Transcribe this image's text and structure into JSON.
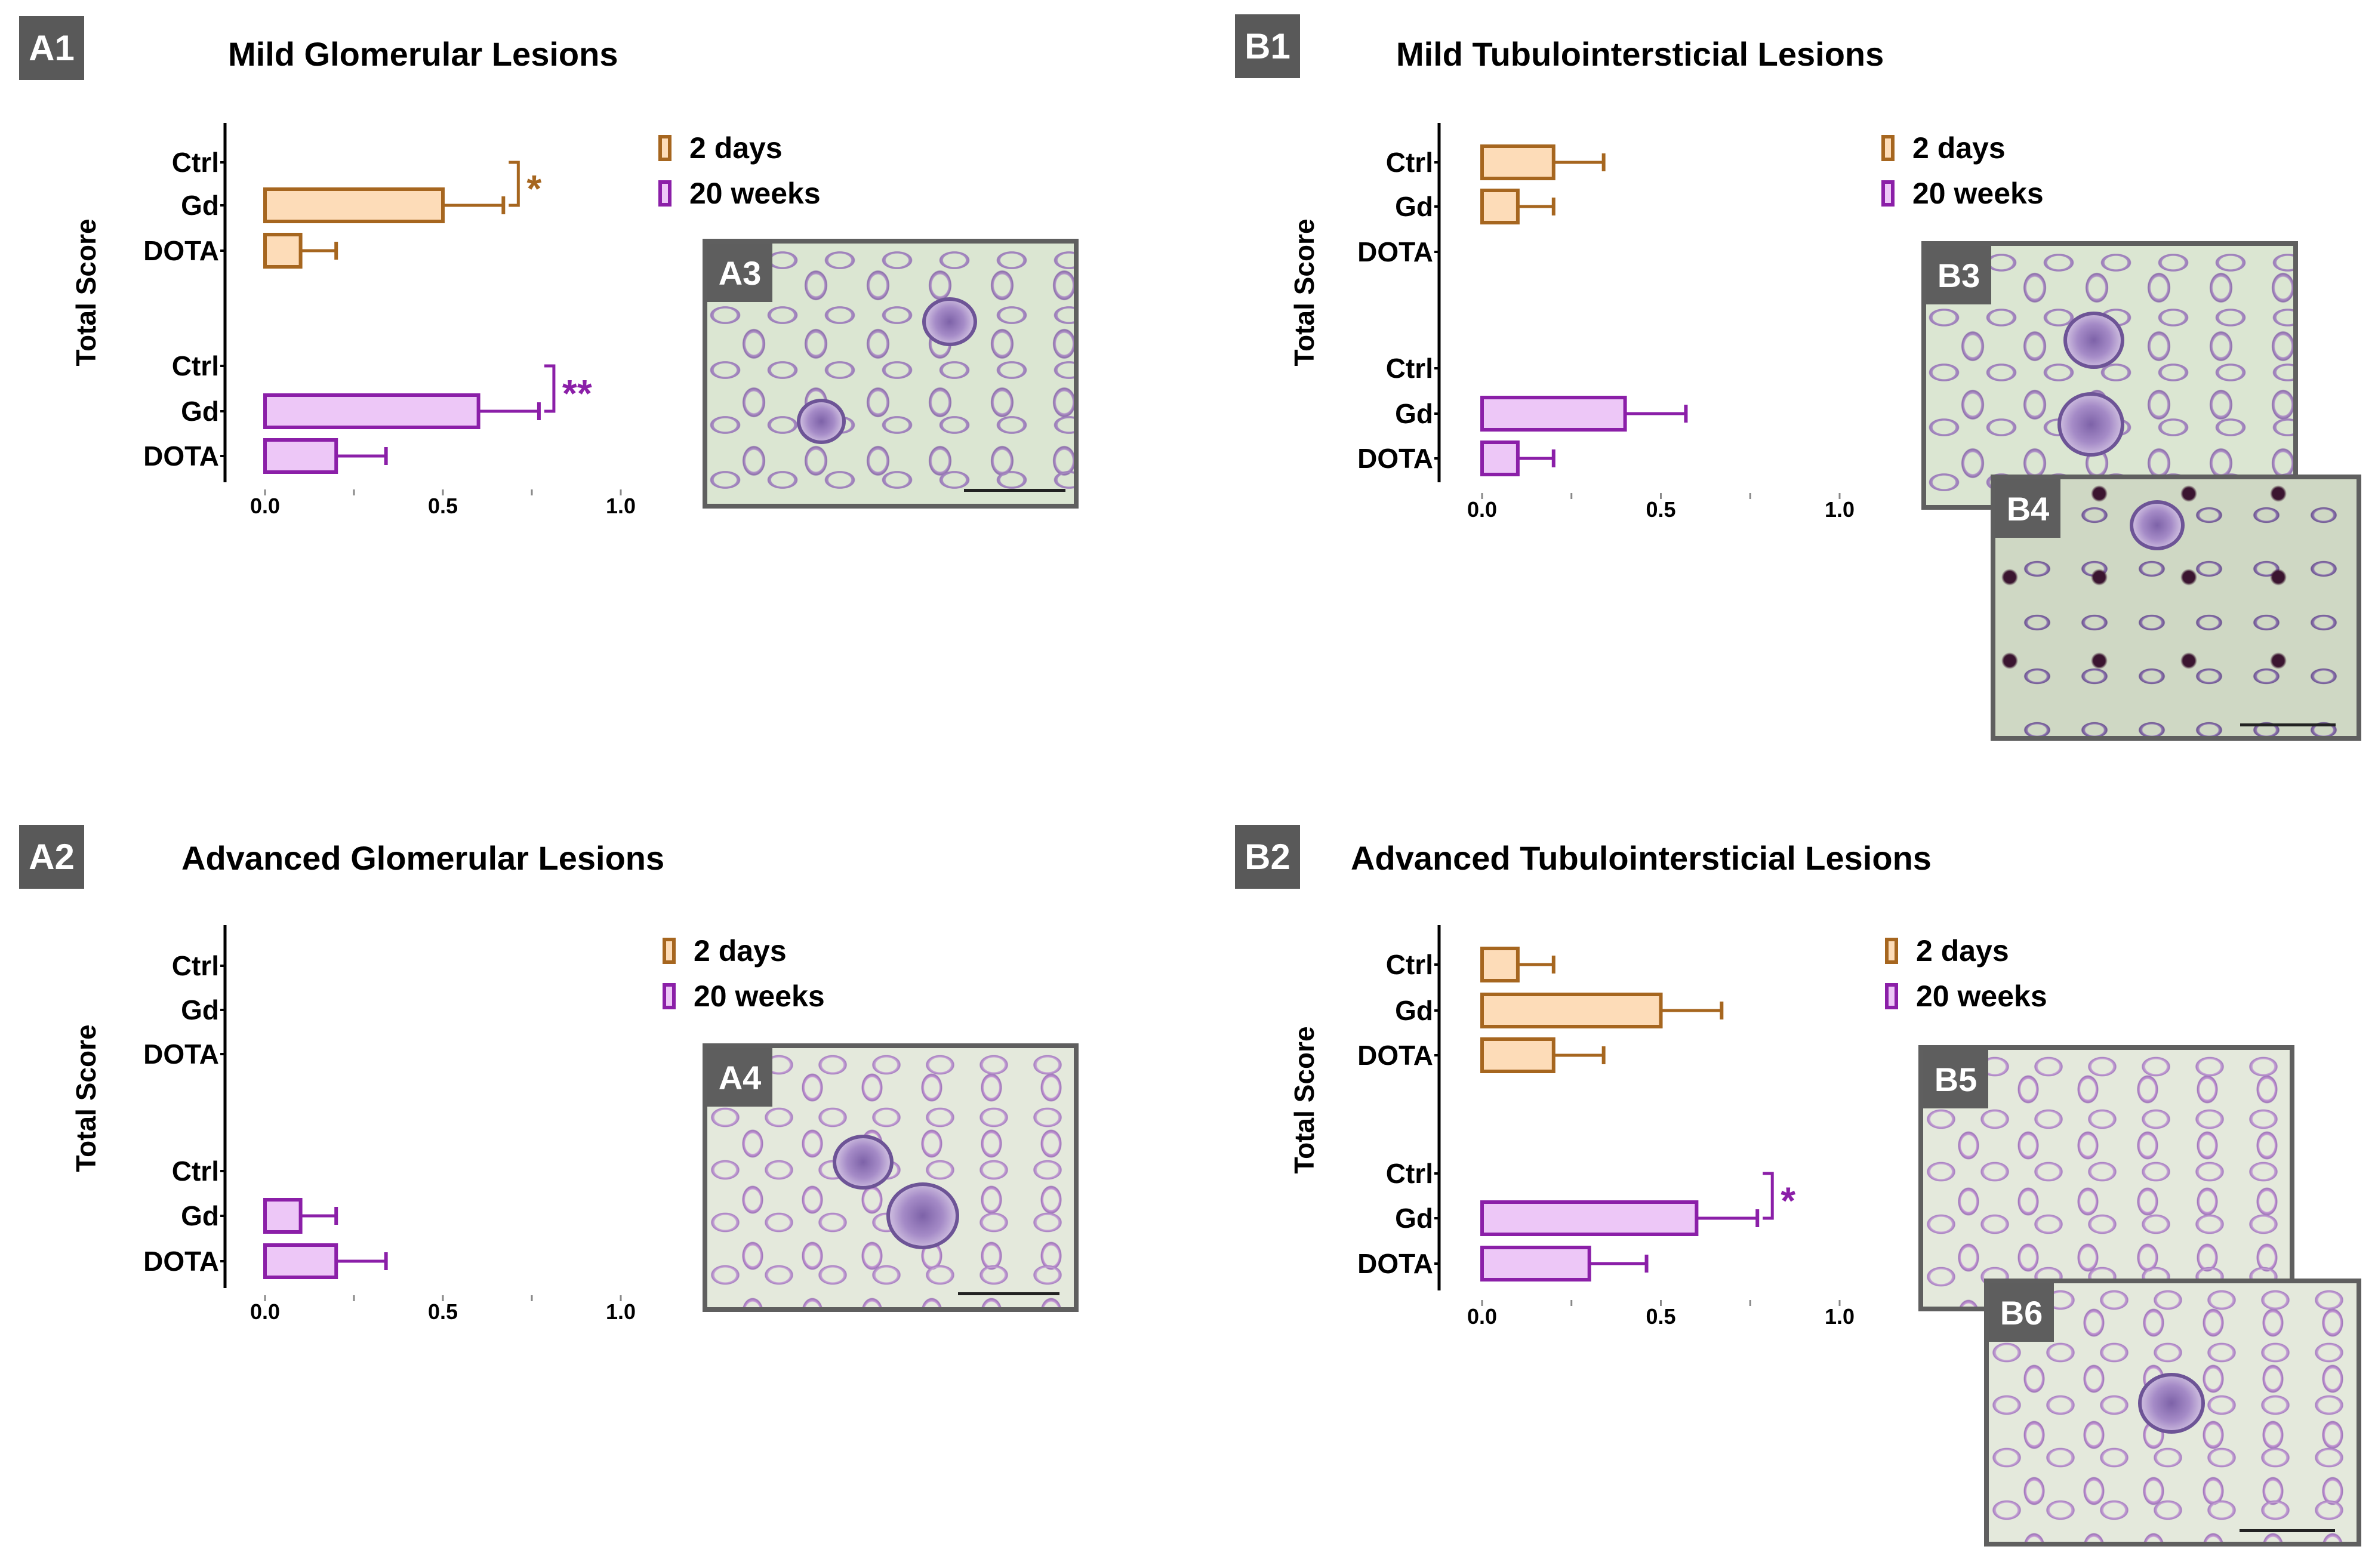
{
  "chart_data": [
    {
      "id": "A1",
      "type": "bar",
      "orientation": "horizontal",
      "title": "Mild Glomerular Lesions",
      "ylabel": "Total Score",
      "xlim": [
        0,
        1.0
      ],
      "xticks": [
        "0.0",
        "0.5",
        "1.0"
      ],
      "groups": [
        {
          "name": "2 days",
          "categories": [
            "Ctrl",
            "Gd",
            "DOTA"
          ],
          "values": [
            0,
            0.5,
            0.1
          ],
          "errors": [
            0,
            0.17,
            0.1
          ],
          "significance": "*"
        },
        {
          "name": "20 weeks",
          "categories": [
            "Ctrl",
            "Gd",
            "DOTA"
          ],
          "values": [
            0,
            0.6,
            0.2
          ],
          "errors": [
            0,
            0.17,
            0.14
          ],
          "significance": "**"
        }
      ]
    },
    {
      "id": "A2",
      "type": "bar",
      "orientation": "horizontal",
      "title": "Advanced Glomerular Lesions",
      "ylabel": "Total Score",
      "xlim": [
        0,
        1.0
      ],
      "xticks": [
        "0.0",
        "0.5",
        "1.0"
      ],
      "groups": [
        {
          "name": "2 days",
          "categories": [
            "Ctrl",
            "Gd",
            "DOTA"
          ],
          "values": [
            0,
            0,
            0
          ],
          "errors": [
            0,
            0,
            0
          ],
          "significance": ""
        },
        {
          "name": "20 weeks",
          "categories": [
            "Ctrl",
            "Gd",
            "DOTA"
          ],
          "values": [
            0,
            0.1,
            0.2
          ],
          "errors": [
            0,
            0.1,
            0.14
          ],
          "significance": ""
        }
      ]
    },
    {
      "id": "B1",
      "type": "bar",
      "orientation": "horizontal",
      "title": "Mild Tubulointersticial Lesions",
      "ylabel": "Total Score",
      "xlim": [
        0,
        1.0
      ],
      "xticks": [
        "0.0",
        "0.5",
        "1.0"
      ],
      "groups": [
        {
          "name": "2 days",
          "categories": [
            "Ctrl",
            "Gd",
            "DOTA"
          ],
          "values": [
            0.2,
            0.1,
            0
          ],
          "errors": [
            0.14,
            0.1,
            0
          ],
          "significance": ""
        },
        {
          "name": "20 weeks",
          "categories": [
            "Ctrl",
            "Gd",
            "DOTA"
          ],
          "values": [
            0,
            0.4,
            0.1
          ],
          "errors": [
            0,
            0.17,
            0.1
          ],
          "significance": ""
        }
      ]
    },
    {
      "id": "B2",
      "type": "bar",
      "orientation": "horizontal",
      "title": "Advanced Tubulointersticial Lesions",
      "ylabel": "Total Score",
      "xlim": [
        0,
        1.0
      ],
      "xticks": [
        "0.0",
        "0.5",
        "1.0"
      ],
      "groups": [
        {
          "name": "2 days",
          "categories": [
            "Ctrl",
            "Gd",
            "DOTA"
          ],
          "values": [
            0.1,
            0.5,
            0.2
          ],
          "errors": [
            0.1,
            0.17,
            0.14
          ],
          "significance": ""
        },
        {
          "name": "20 weeks",
          "categories": [
            "Ctrl",
            "Gd",
            "DOTA"
          ],
          "values": [
            0,
            0.6,
            0.3
          ],
          "errors": [
            0,
            0.17,
            0.16
          ],
          "significance": "*"
        }
      ]
    }
  ],
  "legend": {
    "days": "2 days",
    "weeks": "20 weeks"
  },
  "micrographs": {
    "A3": "A3",
    "A4": "A4",
    "B3": "B3",
    "B4": "B4",
    "B5": "B5",
    "B6": "B6"
  },
  "colors": {
    "days_fill": "#fddcb8",
    "days_stroke": "#a6661f",
    "weeks_fill": "#edc7f7",
    "weeks_stroke": "#8b1fa8",
    "tag_bg": "#595959"
  }
}
